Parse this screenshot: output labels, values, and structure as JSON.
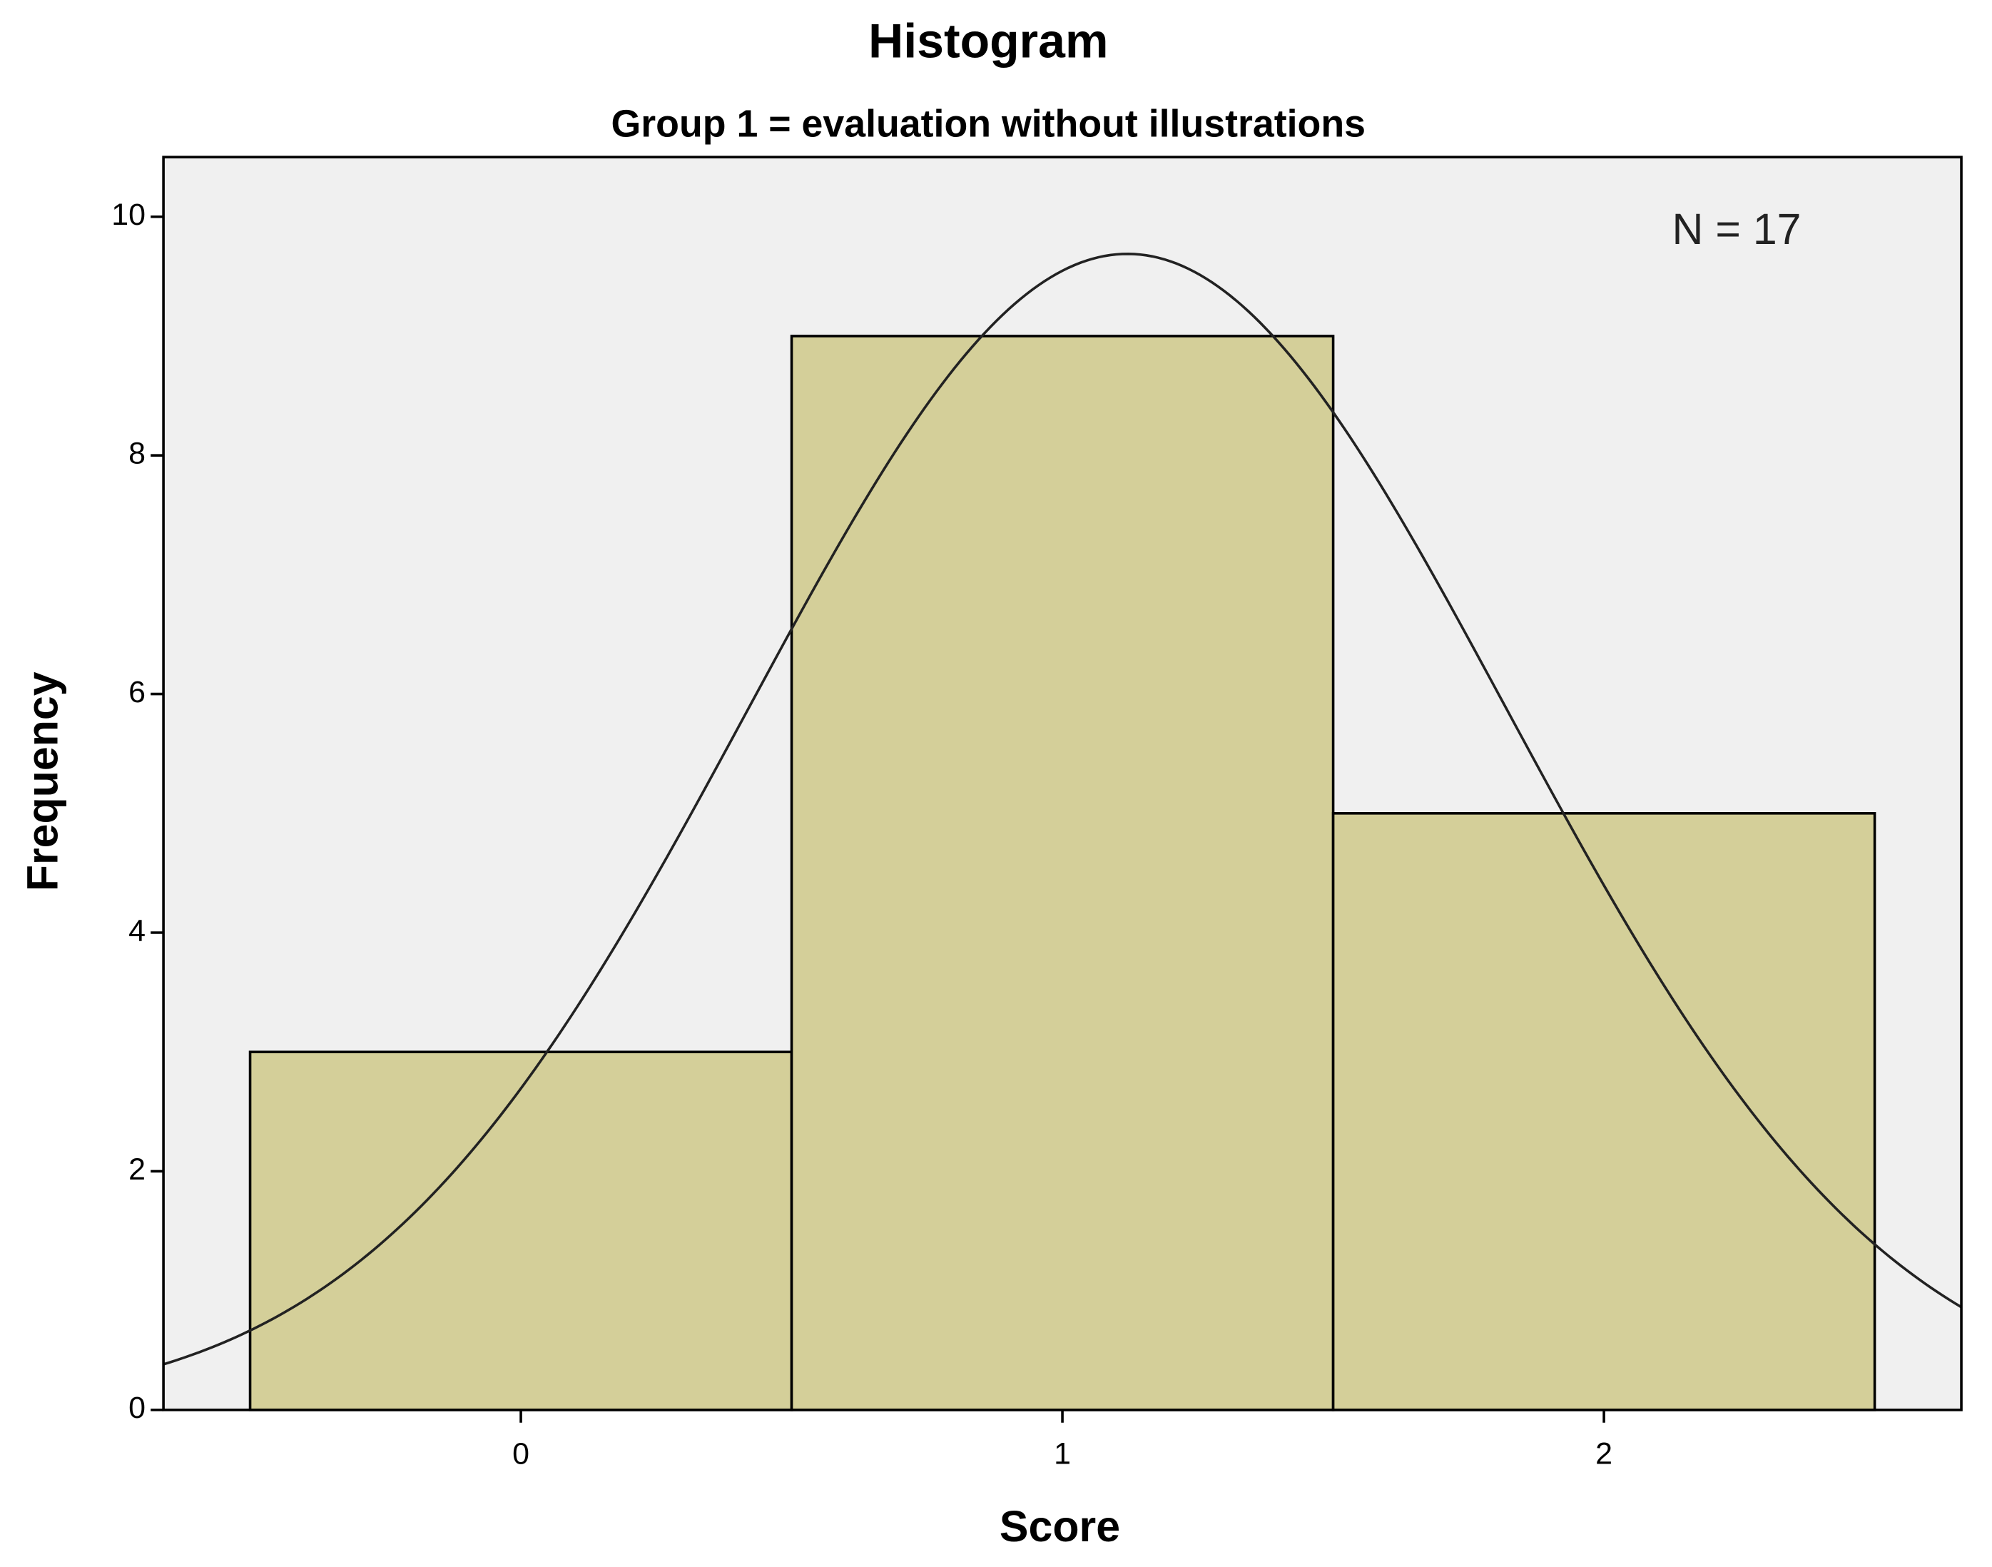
{
  "chart_data": {
    "type": "histogram",
    "title": "Histogram",
    "subtitle": "Group 1 = evaluation without illustrations",
    "x_label": "Score",
    "y_label": "Frequency",
    "annotation": "N = 17",
    "bins": [
      -0.5,
      0.5,
      1.5,
      2.5
    ],
    "values": [
      3,
      9,
      5
    ],
    "color": "#d4cf99",
    "edge_color": "#000000",
    "background": "#f0f0f0",
    "curve": {
      "mean": 1.12,
      "sd": 0.7
    },
    "xlim": [
      -0.66,
      2.66
    ],
    "xticks": [
      0,
      1,
      2
    ],
    "ylim": [
      0,
      10.5
    ],
    "yticks": [
      0,
      2,
      4,
      6,
      8,
      10
    ]
  }
}
